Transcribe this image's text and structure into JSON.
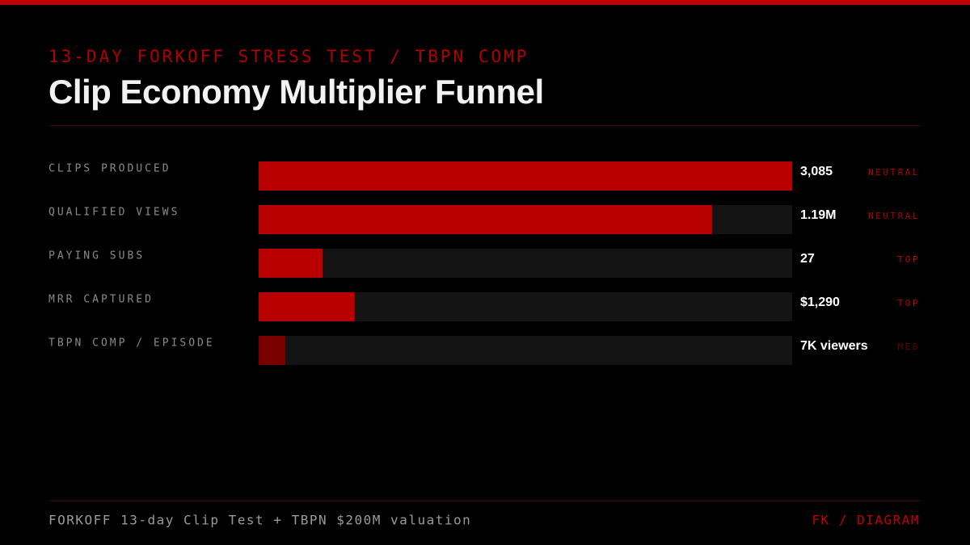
{
  "chart_data": {
    "type": "bar",
    "kicker": "13-DAY FORKOFF STRESS TEST / TBPN COMP",
    "title": "Clip Economy Multiplier Funnel",
    "categories": [
      "CLIPS PRODUCED",
      "QUALIFIED VIEWS",
      "PAYING SUBS",
      "MRR CAPTURED",
      "TBPN COMP / EPISODE"
    ],
    "values": [
      100,
      85,
      12,
      18,
      5
    ],
    "xlim": [
      0,
      100
    ],
    "colors": [
      "#b80000",
      "#b80000",
      "#b80000",
      "#b80000",
      "#7a0000"
    ],
    "metric_labels": [
      "3,085",
      "1.19M",
      "27",
      "$1,290",
      "7K viewers"
    ],
    "tags": [
      "NEUTRAL",
      "NEUTRAL",
      "TOP",
      "TOP",
      "MED"
    ],
    "tag_colors": [
      "#b00000",
      "#b00000",
      "#c00000",
      "#c00000",
      "#6a0000"
    ],
    "footer_left": "FORKOFF 13-day Clip Test + TBPN $200M valuation",
    "footer_right": "FK / DIAGRAM"
  }
}
